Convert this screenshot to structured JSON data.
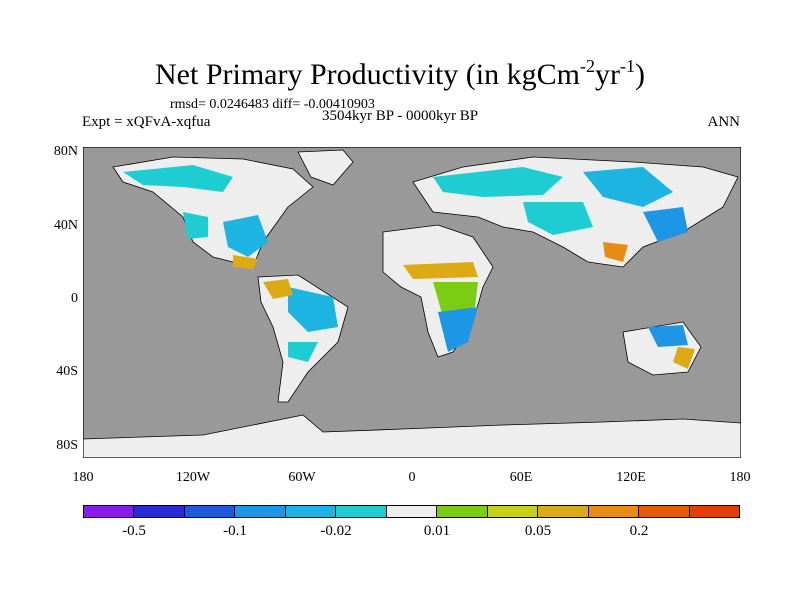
{
  "title": {
    "main": "Net Primary Productivity (in kgCm",
    "sup1": "-2",
    "mid": "yr",
    "sup2": "-1",
    "close": ")"
  },
  "stats": "rmsd= 0.0246483 diff= -0.00410903",
  "period": "3504kyr BP - 0000kyr BP",
  "experiment": "Expt = xQFvA-xqfua",
  "season": "ANN",
  "map": {
    "ocean_color": "#999999",
    "ice_color": "#e6e6e6",
    "lat_labels": [
      "80N",
      "40N",
      "0",
      "40S",
      "80S"
    ],
    "lon_labels": [
      "180",
      "120W",
      "60W",
      "0",
      "60E",
      "120E",
      "180"
    ]
  },
  "colorbar": {
    "colors": [
      "#8c1aeb",
      "#2a2ad9",
      "#1e5adb",
      "#1e96e6",
      "#1eb4e1",
      "#1ecdd2",
      "#eeeeee",
      "#7acd14",
      "#c8d214",
      "#dcaa14",
      "#e68c14",
      "#e65a0a",
      "#e63c0a"
    ],
    "labels": [
      "-0.5",
      "-0.1",
      "-0.02",
      "0.01",
      "0.05",
      "0.2"
    ]
  }
}
